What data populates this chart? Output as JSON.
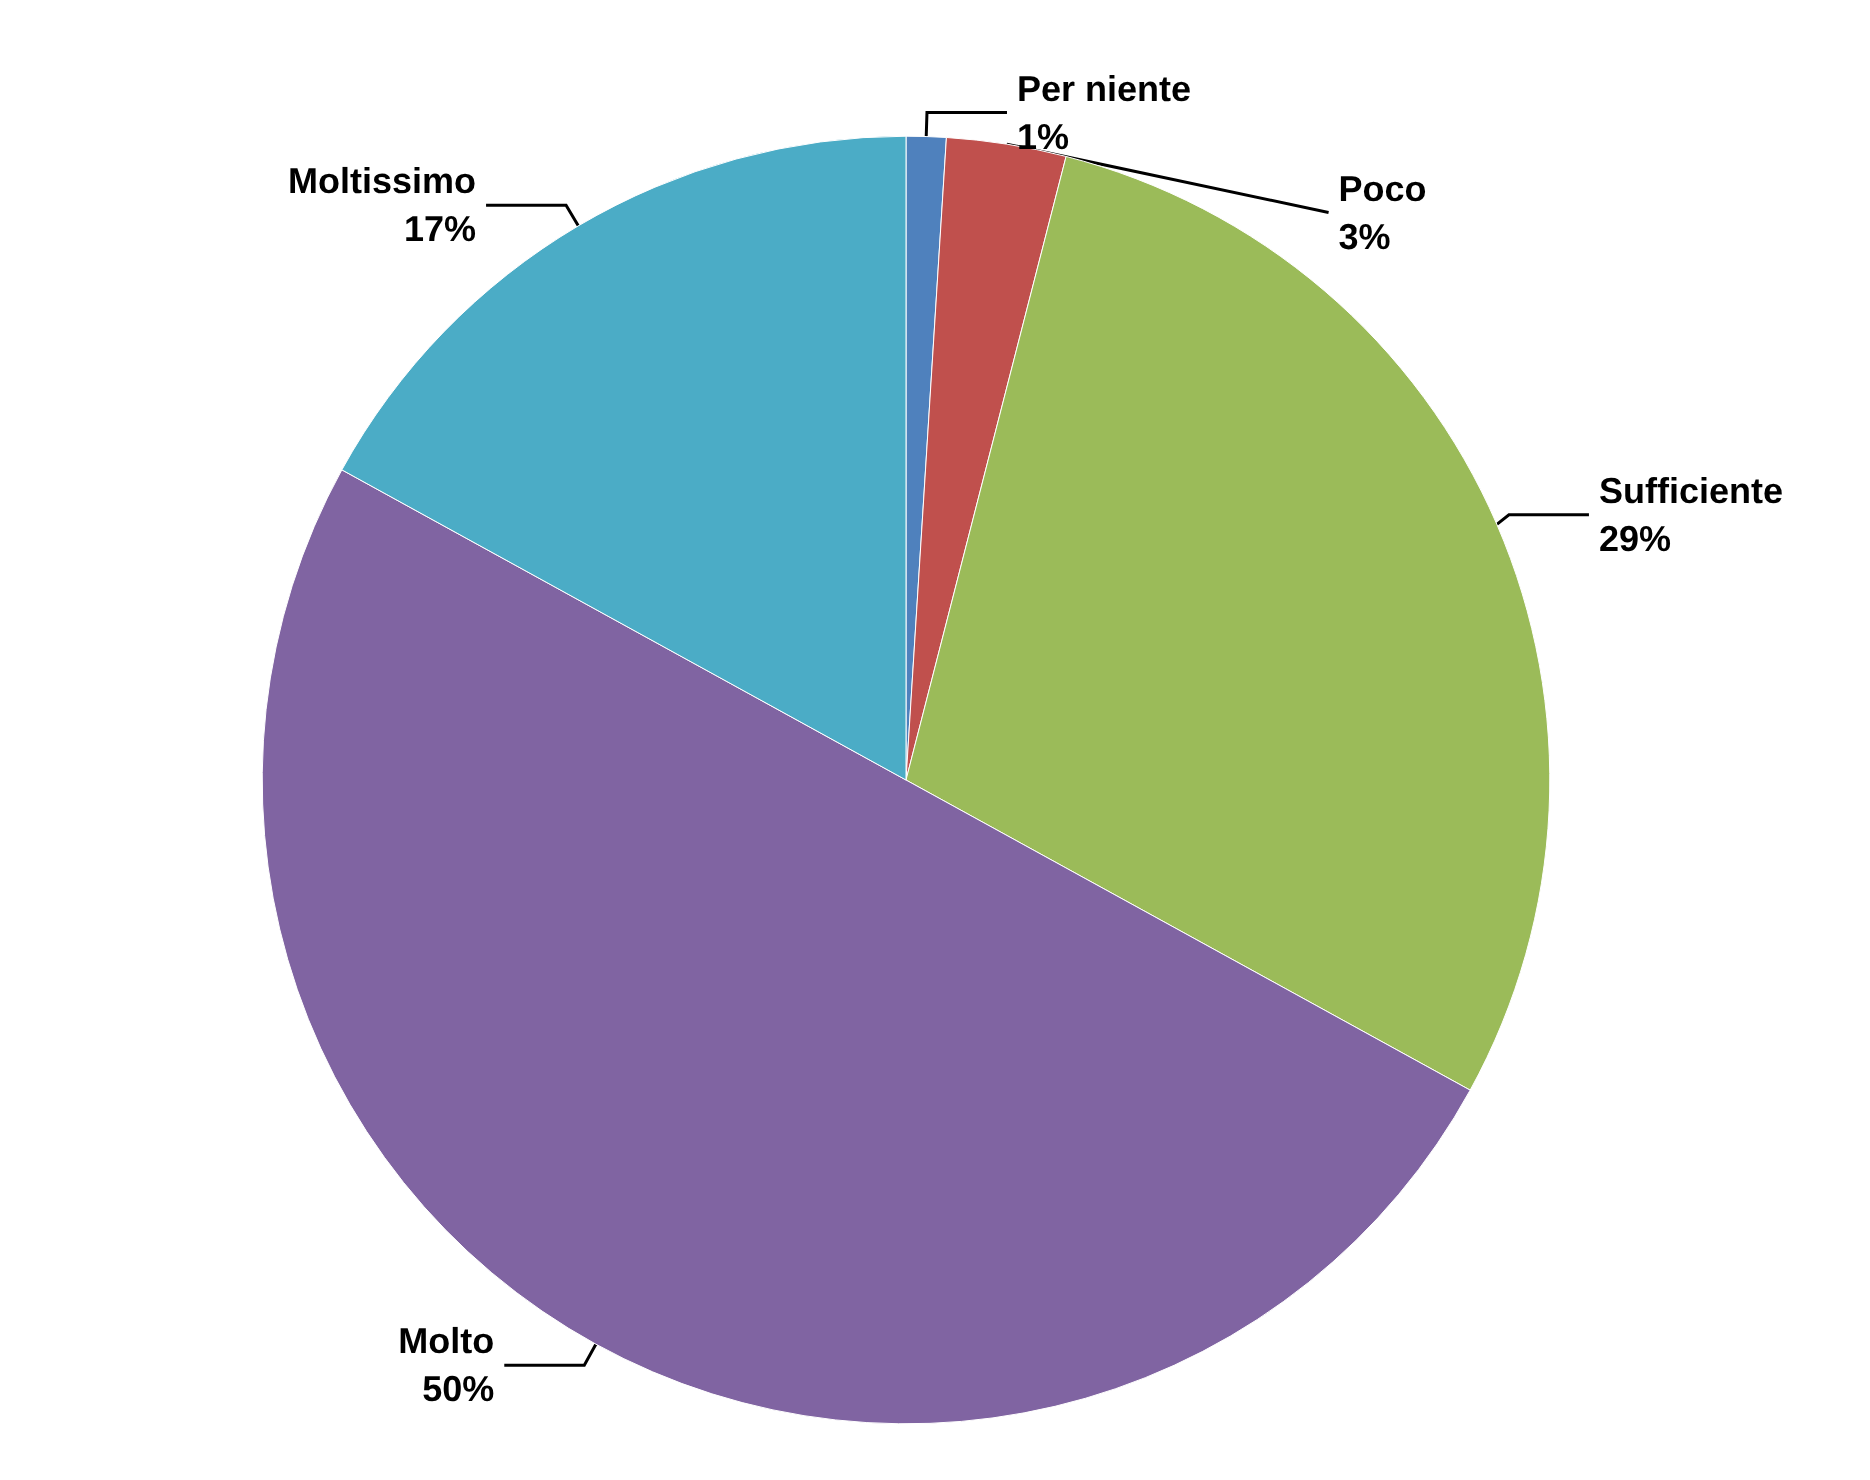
{
  "chart_data": {
    "type": "pie",
    "categories": [
      "Per niente",
      "Poco",
      "Sufficiente",
      "Molto",
      "Moltissimo"
    ],
    "values": [
      1,
      3,
      29,
      50,
      17
    ],
    "value_labels": [
      "1%",
      "3%",
      "29%",
      "50%",
      "17%"
    ],
    "colors": [
      "#4f81bd",
      "#c0504d",
      "#9bbb59",
      "#8064a2",
      "#4bacc6"
    ],
    "legend": false
  }
}
